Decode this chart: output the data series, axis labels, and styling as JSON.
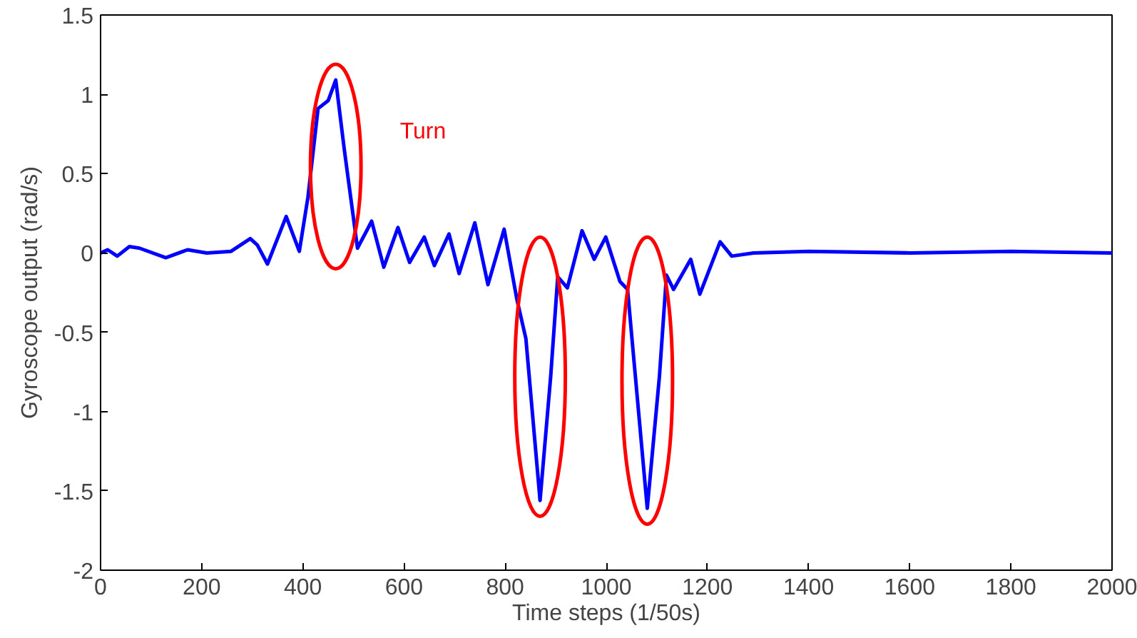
{
  "chart_data": {
    "type": "line",
    "xlabel": "Time steps (1/50s)",
    "ylabel": "Gyroscope output (rad/s)",
    "xlim": [
      0,
      2000
    ],
    "ylim": [
      -2,
      1.5
    ],
    "xticks": [
      0,
      200,
      400,
      600,
      800,
      1000,
      1200,
      1400,
      1600,
      1800,
      2000
    ],
    "yticks": [
      -2,
      -1.5,
      -1,
      -0.5,
      0,
      0.5,
      1,
      1.5
    ],
    "grid": false,
    "annotations": [
      "Turn"
    ],
    "series": [
      {
        "color": "#0000ff",
        "x": [
          0,
          14,
          33,
          57,
          77,
          129,
          172,
          210,
          258,
          296,
          310,
          330,
          367,
          393,
          410,
          430,
          450,
          465,
          482,
          508,
          536,
          560,
          588,
          611,
          640,
          660,
          689,
          709,
          740,
          766,
          798,
          823,
          841,
          869,
          890,
          904,
          923,
          952,
          976,
          999,
          1027,
          1042,
          1081,
          1105,
          1119,
          1133,
          1167,
          1185,
          1225,
          1248,
          1291,
          1400,
          1600,
          1800,
          2000
        ],
        "values": [
          0,
          0.02,
          -0.02,
          0.04,
          0.03,
          -0.03,
          0.02,
          0,
          0.01,
          0.09,
          0.05,
          -0.07,
          0.23,
          0.01,
          0.35,
          0.91,
          0.96,
          1.09,
          0.65,
          0.03,
          0.2,
          -0.09,
          0.16,
          -0.06,
          0.1,
          -0.08,
          0.12,
          -0.13,
          0.19,
          -0.2,
          0.15,
          -0.29,
          -0.54,
          -1.56,
          -0.78,
          -0.15,
          -0.22,
          0.14,
          -0.04,
          0.1,
          -0.18,
          -0.23,
          -1.61,
          -0.78,
          -0.14,
          -0.23,
          -0.04,
          -0.26,
          0.07,
          -0.02,
          0,
          0.01,
          0,
          0.01,
          0
        ]
      }
    ]
  }
}
